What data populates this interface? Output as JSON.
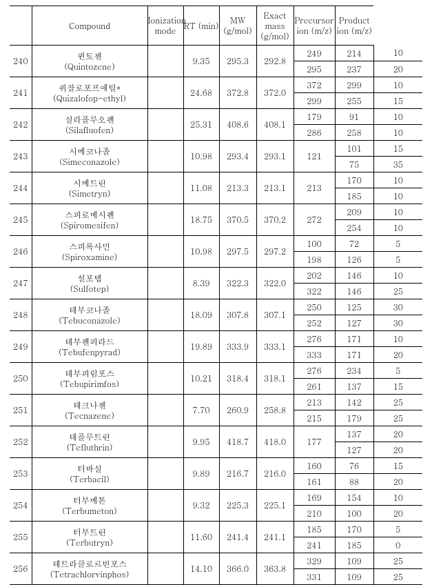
{
  "headers": {
    "idx": "",
    "compound": "Compound",
    "ion_mode": "Ionization mode",
    "rt": "RT (min)",
    "mw": "MW (g/mol)",
    "exact_mass": "Exact mass (g/mol)",
    "precursor": "Precursor ion (m/z)",
    "product": "Product ion (m/z)"
  },
  "rows": [
    {
      "idx": "240",
      "name_ko": "퀸토젠",
      "name_en": "(Quintozene)",
      "ion_mode": "",
      "rt": "9.35",
      "mw": "295.3",
      "exact_mass": "292.8",
      "sub": [
        {
          "precursor": "249",
          "product_a": "214",
          "product_b": "10"
        },
        {
          "precursor": "295",
          "product_a": "237",
          "product_b": "20"
        }
      ]
    },
    {
      "idx": "241",
      "name_ko": "퀴잘로포프에틸*",
      "name_en": "(Quizalofop-ethyl)",
      "ion_mode": "",
      "rt": "24.68",
      "mw": "372.8",
      "exact_mass": "372.0",
      "sub": [
        {
          "precursor": "372",
          "product_a": "299",
          "product_b": "10"
        },
        {
          "precursor": "299",
          "product_a": "255",
          "product_b": "15"
        }
      ]
    },
    {
      "idx": "242",
      "name_ko": "실라플루오펜",
      "name_en": "(Silafluofen)",
      "ion_mode": "",
      "rt": "25.31",
      "mw": "408.6",
      "exact_mass": "408.1",
      "sub": [
        {
          "precursor": "179",
          "product_a": "91",
          "product_b": "10"
        },
        {
          "precursor": "286",
          "product_a": "258",
          "product_b": "10"
        }
      ]
    },
    {
      "idx": "243",
      "name_ko": "시메코나졸",
      "name_en": "(Simeconazole)",
      "ion_mode": "",
      "rt": "10.98",
      "mw": "293.4",
      "exact_mass": "293.1",
      "precursor_merged": "121",
      "sub": [
        {
          "product_a": "101",
          "product_b": "15"
        },
        {
          "product_a": "75",
          "product_b": "35"
        }
      ]
    },
    {
      "idx": "244",
      "name_ko": "시메트린",
      "name_en": "(Simetryn)",
      "ion_mode": "",
      "rt": "11.08",
      "mw": "213.3",
      "exact_mass": "213.1",
      "precursor_merged": "213",
      "sub": [
        {
          "product_a": "170",
          "product_b": "10"
        },
        {
          "product_a": "185",
          "product_b": "10"
        }
      ]
    },
    {
      "idx": "245",
      "name_ko": "스피로메시펜",
      "name_en": "(Spiromesifen)",
      "ion_mode": "",
      "rt": "18.75",
      "mw": "370.5",
      "exact_mass": "370.2",
      "precursor_merged": "272",
      "sub": [
        {
          "product_a": "209",
          "product_b": "10"
        },
        {
          "product_a": "254",
          "product_b": "10"
        }
      ]
    },
    {
      "idx": "246",
      "name_ko": "스피록사민",
      "name_en": "(Spiroxamine)",
      "ion_mode": "",
      "rt": "10.98",
      "mw": "297.5",
      "exact_mass": "297.2",
      "sub": [
        {
          "precursor": "100",
          "product_a": "72",
          "product_b": "5"
        },
        {
          "precursor": "198",
          "product_a": "126",
          "product_b": "5"
        }
      ]
    },
    {
      "idx": "247",
      "name_ko": "설포텝",
      "name_en": "(Sulfotep)",
      "ion_mode": "",
      "rt": "8.39",
      "mw": "322.3",
      "exact_mass": "322.0",
      "sub": [
        {
          "precursor": "202",
          "product_a": "146",
          "product_b": "10"
        },
        {
          "precursor": "322",
          "product_a": "146",
          "product_b": "25"
        }
      ]
    },
    {
      "idx": "248",
      "name_ko": "테부코나졸",
      "name_en": "(Tebuconazole)",
      "ion_mode": "",
      "rt": "18.09",
      "mw": "307.8",
      "exact_mass": "307.1",
      "sub": [
        {
          "precursor": "250",
          "product_a": "125",
          "product_b": "30"
        },
        {
          "precursor": "252",
          "product_a": "127",
          "product_b": "30"
        }
      ]
    },
    {
      "idx": "249",
      "name_ko": "테부펜피라드",
      "name_en": "(Tebufenpyrad)",
      "ion_mode": "",
      "rt": "19.89",
      "mw": "333.9",
      "exact_mass": "333.1",
      "sub": [
        {
          "precursor": "276",
          "product_a": "171",
          "product_b": "10"
        },
        {
          "precursor": "333",
          "product_a": "171",
          "product_b": "20"
        }
      ]
    },
    {
      "idx": "250",
      "name_ko": "테부피림포스",
      "name_en": "(Tebupirimfos)",
      "ion_mode": "",
      "rt": "10.21",
      "mw": "318.4",
      "exact_mass": "318.1",
      "sub": [
        {
          "precursor": "276",
          "product_a": "234",
          "product_b": "5"
        },
        {
          "precursor": "261",
          "product_a": "137",
          "product_b": "15"
        }
      ]
    },
    {
      "idx": "251",
      "name_ko": "테크나젠",
      "name_en": "(Tecnazene)",
      "ion_mode": "",
      "rt": "7.70",
      "mw": "260.9",
      "exact_mass": "258.8",
      "sub": [
        {
          "precursor": "213",
          "product_a": "142",
          "product_b": "25"
        },
        {
          "precursor": "215",
          "product_a": "179",
          "product_b": "25"
        }
      ]
    },
    {
      "idx": "252",
      "name_ko": "테플루트린",
      "name_en": "(Tefluthrin)",
      "ion_mode": "",
      "rt": "9.95",
      "mw": "418.7",
      "exact_mass": "418.0",
      "precursor_merged": "177",
      "sub": [
        {
          "product_a": "137",
          "product_b": "20"
        },
        {
          "product_a": "127",
          "product_b": "20"
        }
      ]
    },
    {
      "idx": "253",
      "name_ko": "터바실",
      "name_en": "(Terbacil)",
      "ion_mode": "",
      "rt": "9.89",
      "mw": "216.7",
      "exact_mass": "216.0",
      "sub": [
        {
          "precursor": "160",
          "product_a": "76",
          "product_b": "15"
        },
        {
          "precursor": "161",
          "product_a": "88",
          "product_b": "20"
        }
      ]
    },
    {
      "idx": "254",
      "name_ko": "터부메톤",
      "name_en": "(Terbumeton)",
      "ion_mode": "",
      "rt": "9.32",
      "mw": "225.3",
      "exact_mass": "225.1",
      "sub": [
        {
          "precursor": "169",
          "product_a": "154",
          "product_b": "10"
        },
        {
          "precursor": "210",
          "product_a": "100",
          "product_b": "20"
        }
      ]
    },
    {
      "idx": "255",
      "name_ko": "터부트린",
      "name_en": "(Terbutryn)",
      "ion_mode": "",
      "rt": "11.60",
      "mw": "241.4",
      "exact_mass": "241.1",
      "sub": [
        {
          "precursor": "185",
          "product_a": "170",
          "product_b": "5"
        },
        {
          "precursor": "241",
          "product_a": "185",
          "product_b": "0"
        }
      ]
    },
    {
      "idx": "256",
      "name_ko": "테트라클로르빈포스",
      "name_en": "(Tetrachlorvinphos)",
      "ion_mode": "",
      "rt": "14.10",
      "mw": "366.0",
      "exact_mass": "363.8",
      "sub": [
        {
          "precursor": "329",
          "product_a": "109",
          "product_b": "25"
        },
        {
          "precursor": "331",
          "product_a": "109",
          "product_b": "25"
        }
      ]
    }
  ]
}
